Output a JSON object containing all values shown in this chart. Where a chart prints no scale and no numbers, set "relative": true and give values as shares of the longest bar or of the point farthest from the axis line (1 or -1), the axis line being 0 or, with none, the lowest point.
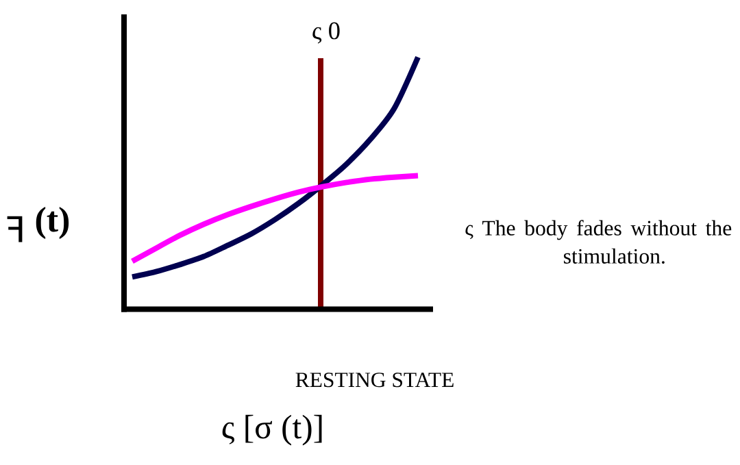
{
  "chart_data": {
    "type": "line",
    "relative": true,
    "xlabel": "ς [σ (t)]",
    "ylabel": "ꟻ **(t)**",
    "categories": [
      null,
      null,
      null,
      null,
      null,
      null,
      null,
      null,
      null,
      null,
      null,
      null,
      null
    ],
    "series": [
      {
        "color": "#000050",
        "values": [
          0.128,
          0.149,
          0.177,
          0.209,
          0.253,
          0.299,
          0.356,
          0.421,
          0.495,
          0.576,
          0.674,
          0.796,
          1
        ]
      },
      {
        "color": "#ff00ff",
        "values": [
          0.19,
          0.242,
          0.293,
          0.337,
          0.375,
          0.408,
          0.438,
          0.465,
          0.486,
          0.503,
          0.516,
          0.524,
          0.53
        ]
      }
    ],
    "annotations": [
      "ς 0",
      "RESTING STATE",
      "ς The body fades without the stimulation."
    ],
    "marker": "none",
    "line_style": "solid"
  }
}
